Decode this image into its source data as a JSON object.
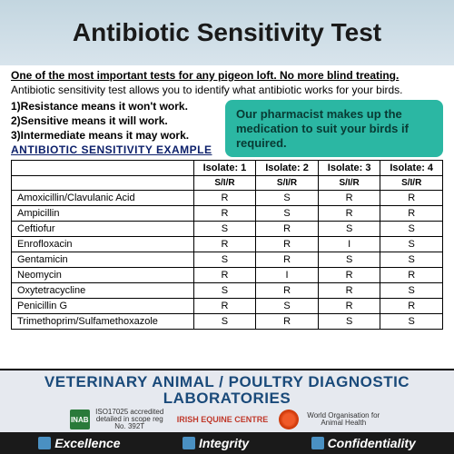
{
  "title": "Antibiotic Sensitivity Test",
  "intro_bold": "One of the most important tests for any pigeon loft. No more blind treating.",
  "intro_sub": "Antibiotic sensitivity test allows you to identify what antibiotic works for your birds.",
  "means": {
    "r": "1)Resistance means it won't work.",
    "s": "2)Sensitive means it will work.",
    "i": "3)Intermediate means it may work."
  },
  "pharm_box": "Our pharmacist makes up the medication to suit your birds if required.",
  "example_label": "ANTIBIOTIC  SENSITIVITY EXAMPLE",
  "table": {
    "isolates": [
      "Isolate: 1",
      "Isolate: 2",
      "Isolate: 3",
      "Isolate: 4"
    ],
    "subhead": "S/I/R",
    "rows": [
      {
        "name": "Amoxicillin/Clavulanic Acid",
        "vals": [
          "R",
          "S",
          "R",
          "R"
        ]
      },
      {
        "name": "Ampicillin",
        "vals": [
          "R",
          "S",
          "R",
          "R"
        ]
      },
      {
        "name": "Ceftiofur",
        "vals": [
          "S",
          "R",
          "S",
          "S"
        ]
      },
      {
        "name": "Enrofloxacin",
        "vals": [
          "R",
          "R",
          "I",
          "S"
        ]
      },
      {
        "name": "Gentamicin",
        "vals": [
          "S",
          "R",
          "S",
          "S"
        ]
      },
      {
        "name": "Neomycin",
        "vals": [
          "R",
          "I",
          "R",
          "R"
        ]
      },
      {
        "name": "Oxytetracycline",
        "vals": [
          "S",
          "R",
          "R",
          "S"
        ]
      },
      {
        "name": "Penicillin G",
        "vals": [
          "R",
          "S",
          "R",
          "R"
        ]
      },
      {
        "name": "Trimethoprim/Sulfamethoxazole",
        "vals": [
          "S",
          "R",
          "S",
          "S"
        ]
      }
    ]
  },
  "lab": {
    "title": "VETERINARY ANIMAL / POULTRY DIAGNOSTIC LABORATORIES",
    "accred": "ISO17025 accredited detailed in scope reg No. 392T",
    "equine": "IRISH EQUINE CENTRE",
    "woah": "World Organisation for Animal Health"
  },
  "footer": {
    "a": "Excellence",
    "b": "Integrity",
    "c": "Confidentiality"
  },
  "colors": {
    "banner_top": "#c3d6e0",
    "banner_bot": "#d8e4ec",
    "pharm_bg": "#2bb7a3",
    "example_color": "#0b1f6a",
    "lab_bg": "#e6e9ef",
    "lab_text": "#1a4a7a",
    "footer_bg": "#1a1a1a"
  }
}
